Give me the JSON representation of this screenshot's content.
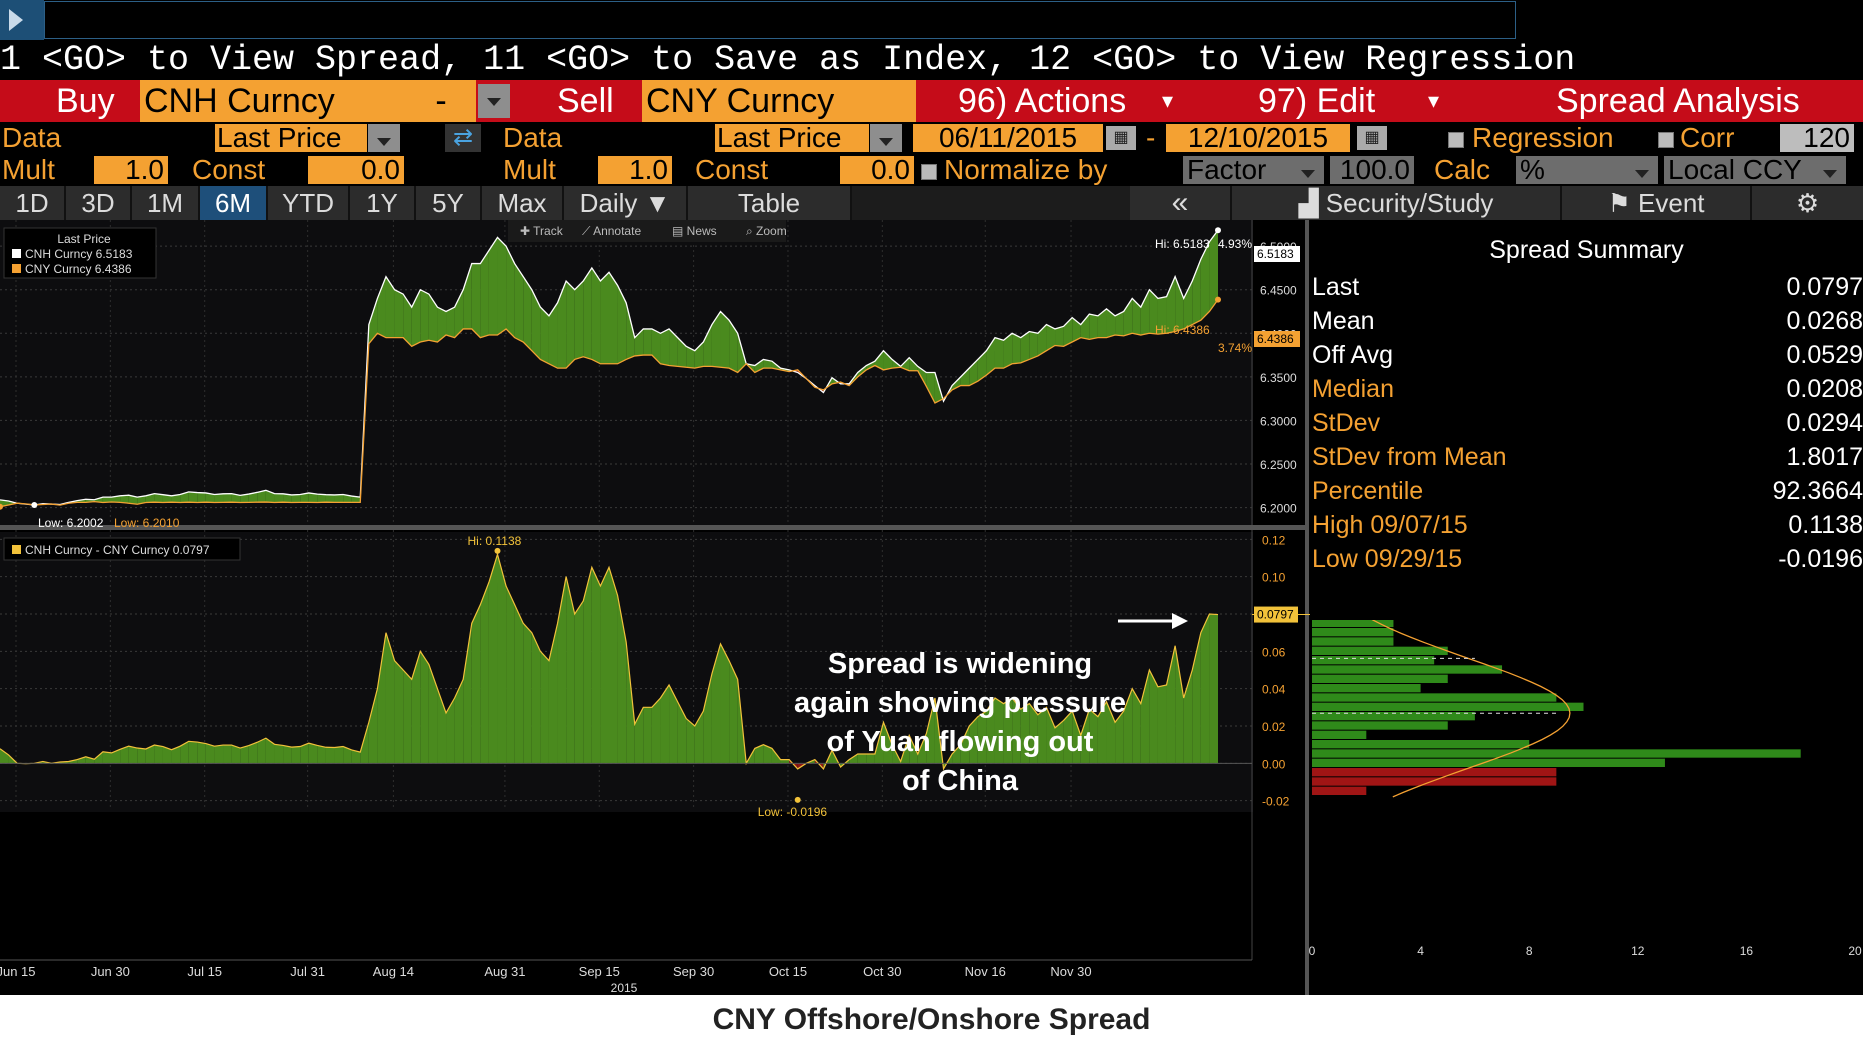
{
  "command": {
    "hint": "1 <GO> to View Spread, 11 <GO> to Save as Index, 12 <GO> to View Regression"
  },
  "header": {
    "buy_label": "Buy",
    "buy_security": "CNH Curncy",
    "dash": "-",
    "sell_label": "Sell",
    "sell_security": "CNY Curncy",
    "actions": "96) Actions",
    "edit": "97) Edit",
    "title": "Spread Analysis"
  },
  "controls": {
    "data_label": "Data",
    "data_value_left": "Last Price",
    "data_label_right": "Data",
    "data_value_right": "Last Price",
    "date_start": "06/11/2015",
    "date_sep": "-",
    "date_end": "12/10/2015",
    "regression": "Regression",
    "corr": "Corr",
    "corr_value": "120",
    "mult_label": "Mult",
    "mult_left": "1.0",
    "const_label": "Const",
    "const_left": "0.0",
    "mult_label_right": "Mult",
    "mult_right": "1.0",
    "const_label_right": "Const",
    "const_right": "0.0",
    "normalize": "Normalize by",
    "factor": "Factor",
    "factor_value": "100.0",
    "calc_label": "Calc",
    "calc_value": "%",
    "ccy": "Local CCY"
  },
  "tabs": {
    "periods": [
      "1D",
      "3D",
      "1M",
      "6M",
      "YTD",
      "1Y",
      "5Y",
      "Max"
    ],
    "active": "6M",
    "frequency": "Daily",
    "table": "Table",
    "collapse": "«",
    "security_study": "Security/Study",
    "event": "Event"
  },
  "toolbar": {
    "items": [
      "Track",
      "Annotate",
      "News",
      "Zoom"
    ]
  },
  "summary": {
    "title": "Spread Summary",
    "rows": [
      {
        "label": "Last",
        "value": "0.0797"
      },
      {
        "label": "Mean",
        "value": "0.0268"
      },
      {
        "label": "Off Avg",
        "value": "0.0529"
      },
      {
        "label": "Median",
        "value": "0.0208"
      },
      {
        "label": "StDev",
        "value": "0.0294"
      },
      {
        "label": "StDev from Mean",
        "value": "1.8017"
      },
      {
        "label": "Percentile",
        "value": "92.3664"
      },
      {
        "label": "High 09/07/15",
        "value": "0.1138"
      },
      {
        "label": "Low 09/29/15",
        "value": "-0.0196"
      }
    ]
  },
  "annotation": {
    "lines": [
      "Spread is widening",
      "again showing pressure",
      "of Yuan flowing out",
      "of China"
    ]
  },
  "caption": "CNY Offshore/Onshore Spread",
  "colors": {
    "cnh": "#ffffff",
    "cny": "#f4a132",
    "positive_fill": "#4a8a1e",
    "negative_fill": "#8b1515",
    "hist_green": "#2f8a1a",
    "hist_red": "#a01515",
    "accent": "#f4a132",
    "header_red": "#c50c19"
  },
  "chart_data": [
    {
      "type": "line",
      "legend_title": "Last Price",
      "legend_position": "top-left",
      "x_ticks": [
        "Jun 15",
        "Jun 30",
        "Jul 15",
        "Jul 31",
        "Aug 14",
        "Aug 31",
        "Sep 15",
        "Sep 30",
        "Oct 15",
        "Oct 30",
        "Nov 16",
        "Nov 30"
      ],
      "x_year": "2015",
      "ylim": [
        6.18,
        6.53
      ],
      "y_ticks": [
        "6.2000",
        "6.2500",
        "6.3000",
        "6.3500",
        "6.4000",
        "6.4500",
        "6.5000"
      ],
      "grid": true,
      "series": [
        {
          "name": "CNH Curncy",
          "legend_value": "6.5183",
          "values": [
            6.2088,
            6.2075,
            6.205,
            6.204,
            6.203,
            6.2045,
            6.204,
            6.2035,
            6.206,
            6.208,
            6.2095,
            6.209,
            6.212,
            6.212,
            6.2135,
            6.2142,
            6.212,
            6.2135,
            6.216,
            6.2148,
            6.2135,
            6.215,
            6.218,
            6.2172,
            6.2168,
            6.215,
            6.2158,
            6.216,
            6.214,
            6.2155,
            6.2175,
            6.2198,
            6.216,
            6.2158,
            6.2145,
            6.215,
            6.2168,
            6.2154,
            6.2148,
            6.2145,
            6.215,
            6.2132,
            6.212,
            6.41,
            6.44,
            6.465,
            6.45,
            6.445,
            6.43,
            6.45,
            6.445,
            6.43,
            6.425,
            6.43,
            6.45,
            6.48,
            6.48,
            6.495,
            6.51,
            6.5,
            6.48,
            6.465,
            6.45,
            6.43,
            6.42,
            6.435,
            6.46,
            6.45,
            6.46,
            6.475,
            6.46,
            6.47,
            6.455,
            6.435,
            6.395,
            6.405,
            6.405,
            6.4,
            6.405,
            6.395,
            6.385,
            6.38,
            6.39,
            6.41,
            6.425,
            6.415,
            6.4,
            6.365,
            6.363,
            6.37,
            6.368,
            6.36,
            6.358,
            6.355,
            6.348,
            6.34,
            6.332,
            6.349,
            6.342,
            6.342,
            6.355,
            6.363,
            6.368,
            6.38,
            6.37,
            6.362,
            6.372,
            6.362,
            6.355,
            6.355,
            6.322,
            6.34,
            6.35,
            6.36,
            6.37,
            6.38,
            6.395,
            6.392,
            6.4,
            6.395,
            6.402,
            6.4,
            6.41,
            6.405,
            6.408,
            6.418,
            6.41,
            6.422,
            6.42,
            6.428,
            6.42,
            6.425,
            6.44,
            6.43,
            6.45,
            6.44,
            6.442,
            6.465,
            6.44,
            6.46,
            6.485,
            6.505,
            6.5183
          ]
        },
        {
          "name": "CNY Curncy",
          "legend_value": "6.4386",
          "values": [
            6.201,
            6.203,
            6.205,
            6.2042,
            6.203,
            6.2035,
            6.204,
            6.2028,
            6.205,
            6.206,
            6.206,
            6.2068,
            6.2058,
            6.2064,
            6.206,
            6.205,
            6.2038,
            6.2058,
            6.2062,
            6.2058,
            6.2062,
            6.2058,
            6.2062,
            6.2058,
            6.2062,
            6.2058,
            6.206,
            6.2062,
            6.2058,
            6.206,
            6.2062,
            6.2063,
            6.2058,
            6.2062,
            6.2058,
            6.206,
            6.206,
            6.2058,
            6.2062,
            6.206,
            6.206,
            6.206,
            6.206,
            6.388,
            6.4,
            6.395,
            6.395,
            6.395,
            6.385,
            6.39,
            6.392,
            6.39,
            6.398,
            6.395,
            6.405,
            6.405,
            6.395,
            6.398,
            6.398,
            6.405,
            6.395,
            6.39,
            6.38,
            6.37,
            6.365,
            6.36,
            6.36,
            6.37,
            6.373,
            6.37,
            6.365,
            6.365,
            6.365,
            6.37,
            6.374,
            6.375,
            6.375,
            6.365,
            6.363,
            6.362,
            6.361,
            6.36,
            6.362,
            6.362,
            6.361,
            6.36,
            6.355,
            6.365,
            6.355,
            6.36,
            6.36,
            6.358,
            6.356,
            6.358,
            6.348,
            6.338,
            6.335,
            6.342,
            6.344,
            6.34,
            6.35,
            6.358,
            6.363,
            6.358,
            6.36,
            6.361,
            6.357,
            6.357,
            6.339,
            6.32,
            6.325,
            6.335,
            6.34,
            6.34,
            6.345,
            6.352,
            6.36,
            6.36,
            6.365,
            6.366,
            6.37,
            6.374,
            6.38,
            6.386,
            6.385,
            6.39,
            6.395,
            6.393,
            6.395,
            6.395,
            6.398,
            6.397,
            6.4,
            6.398,
            6.4,
            6.399,
            6.4,
            6.402,
            6.405,
            6.41,
            6.415,
            6.425,
            6.4386
          ]
        }
      ],
      "annotations": [
        {
          "text": "Hi: 6.5183",
          "series": "CNH Curncy"
        },
        {
          "text": "4.93%",
          "series": "CNH Curncy"
        },
        {
          "text": "Hi: 6.4386",
          "series": "CNY Curncy"
        },
        {
          "text": "3.74%",
          "series": "CNY Curncy"
        },
        {
          "text": "Low: 6.2002",
          "series": "CNH Curncy"
        },
        {
          "text": "Low: 6.2010",
          "series": "CNY Curncy"
        }
      ],
      "last_labels": {
        "cnh": "6.5183",
        "cny": "6.4386"
      }
    },
    {
      "type": "area",
      "legend": "CNH Curncy - CNY Curncy 0.0797",
      "legend_position": "top-left",
      "ylim": [
        -0.025,
        0.125
      ],
      "y_ticks": [
        "-0.02",
        "0.00",
        "0.02",
        "0.04",
        "0.06",
        "0.08",
        "0.10",
        "0.12"
      ],
      "last_label": "0.0797",
      "annotations": [
        {
          "text": "Hi: 0.1138",
          "value": 0.1138
        },
        {
          "text": "Low: -0.0196",
          "value": -0.0196
        }
      ]
    },
    {
      "type": "bar",
      "orientation": "horizontal",
      "title": "",
      "x_ticks": [
        "0",
        "4",
        "8",
        "12",
        "16",
        "20"
      ],
      "xlim": [
        0,
        20
      ],
      "bins": [
        {
          "center": 0.115,
          "count": 2
        },
        {
          "center": 0.105,
          "count": 0.5
        },
        {
          "center": 0.095,
          "count": 0.7
        },
        {
          "center": 0.09,
          "count": 1.5
        },
        {
          "center": 0.085,
          "count": 2.5
        },
        {
          "center": 0.08,
          "count": 3
        },
        {
          "center": 0.075,
          "count": 3
        },
        {
          "center": 0.07,
          "count": 3
        },
        {
          "center": 0.065,
          "count": 3
        },
        {
          "center": 0.06,
          "count": 5
        },
        {
          "center": 0.055,
          "count": 4.5
        },
        {
          "center": 0.05,
          "count": 7
        },
        {
          "center": 0.045,
          "count": 5
        },
        {
          "center": 0.04,
          "count": 4
        },
        {
          "center": 0.035,
          "count": 9
        },
        {
          "center": 0.03,
          "count": 10
        },
        {
          "center": 0.025,
          "count": 6
        },
        {
          "center": 0.02,
          "count": 5
        },
        {
          "center": 0.015,
          "count": 2
        },
        {
          "center": 0.01,
          "count": 8
        },
        {
          "center": 0.005,
          "count": 18
        },
        {
          "center": 0.0,
          "count": 13
        },
        {
          "center": -0.005,
          "count": 9
        },
        {
          "center": -0.01,
          "count": 9
        },
        {
          "center": -0.015,
          "count": 2
        }
      ]
    }
  ]
}
